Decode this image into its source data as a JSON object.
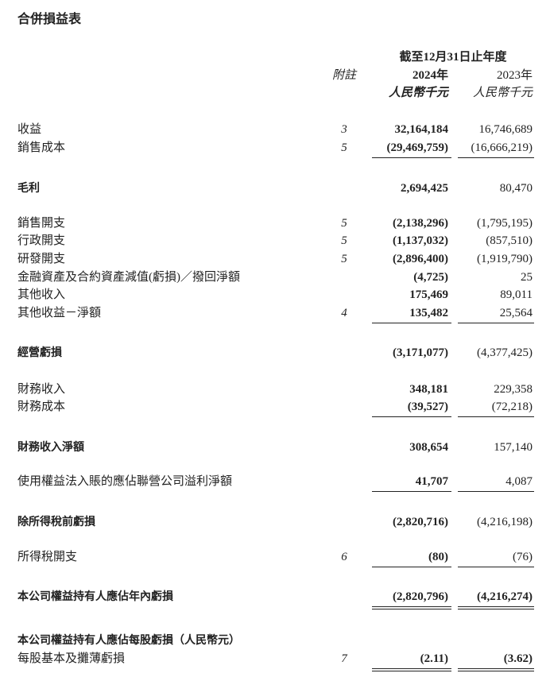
{
  "header": {
    "title": "合併損益表",
    "period": "截至12月31日止年度",
    "note_heading": "附註",
    "years": [
      "2024年",
      "2023年"
    ],
    "units": [
      "人民幣千元",
      "人民幣千元"
    ]
  },
  "rows": [
    {
      "label": "收益",
      "note": "3",
      "values": [
        "32,164,184",
        "16,746,689"
      ]
    },
    {
      "label": "銷售成本",
      "note": "5",
      "values": [
        "(29,469,759)",
        "(16,666,219)"
      ]
    },
    {
      "label": "毛利",
      "values": [
        "2,694,425",
        "80,470"
      ]
    },
    {
      "label": "銷售開支",
      "note": "5",
      "values": [
        "(2,138,296)",
        "(1,795,195)"
      ]
    },
    {
      "label": "行政開支",
      "note": "5",
      "values": [
        "(1,137,032)",
        "(857,510)"
      ]
    },
    {
      "label": "研發開支",
      "note": "5",
      "values": [
        "(2,896,400)",
        "(1,919,790)"
      ]
    },
    {
      "label": "金融資產及合約資產減值(虧損)／撥回淨額",
      "values": [
        "(4,725)",
        "25"
      ]
    },
    {
      "label": "其他收入",
      "values": [
        "175,469",
        "89,011"
      ]
    },
    {
      "label": "其他收益－淨額",
      "note": "4",
      "values": [
        "135,482",
        "25,564"
      ]
    },
    {
      "label": "經營虧損",
      "values": [
        "(3,171,077)",
        "(4,377,425)"
      ]
    },
    {
      "label": "財務收入",
      "values": [
        "348,181",
        "229,358"
      ]
    },
    {
      "label": "財務成本",
      "values": [
        "(39,527)",
        "(72,218)"
      ]
    },
    {
      "label": "財務收入淨額",
      "values": [
        "308,654",
        "157,140"
      ]
    },
    {
      "label": "使用權益法入賬的應佔聯營公司溢利淨額",
      "values": [
        "41,707",
        "4,087"
      ]
    },
    {
      "label": "除所得稅前虧損",
      "values": [
        "(2,820,716)",
        "(4,216,198)"
      ]
    },
    {
      "label": "所得稅開支",
      "note": "6",
      "values": [
        "(80)",
        "(76)"
      ]
    },
    {
      "label": "本公司權益持有人應佔年內虧損",
      "values": [
        "(2,820,796)",
        "(4,216,274)"
      ]
    },
    {
      "label": "本公司權益持有人應佔每股虧損（人民幣元）"
    },
    {
      "label": "每股基本及攤薄虧損",
      "note": "7",
      "values": [
        "(2.11)",
        "(3.62)"
      ]
    }
  ]
}
